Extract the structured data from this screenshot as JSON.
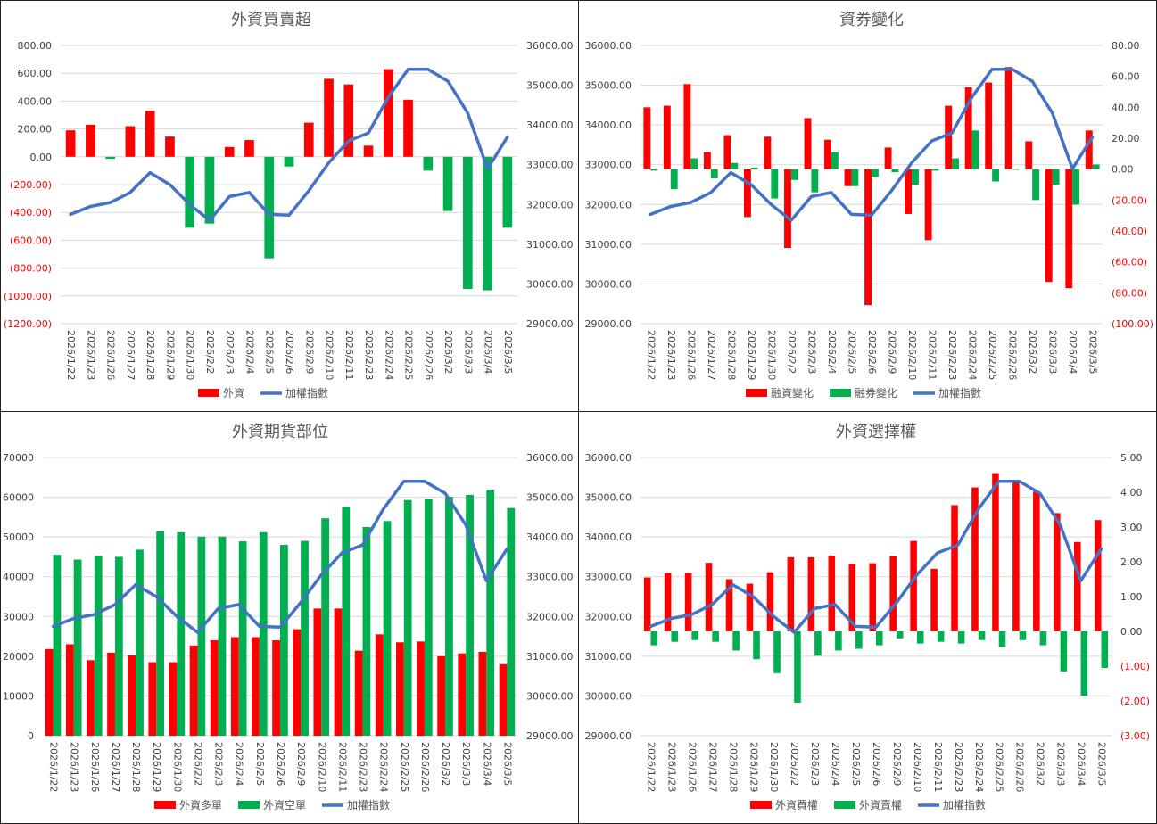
{
  "colors": {
    "red": "#ff0000",
    "green": "#00b050",
    "blue": "#4472c4",
    "grid": "#d9d9d9"
  },
  "chart_data": [
    {
      "type": "bar",
      "title": "外資買賣超",
      "categories": [
        "2026/1/22",
        "2026/1/23",
        "2026/1/26",
        "2026/1/27",
        "2026/1/28",
        "2026/1/29",
        "2026/1/30",
        "2026/2/2",
        "2026/2/3",
        "2026/2/4",
        "2026/2/5",
        "2026/2/6",
        "2026/2/9",
        "2026/2/10",
        "2026/2/11",
        "2026/2/23",
        "2026/2/24",
        "2026/2/25",
        "2026/2/26",
        "2026/3/2",
        "2026/3/3",
        "2026/3/4",
        "2026/3/5"
      ],
      "left_axis": {
        "min": -1200,
        "max": 800,
        "step": 200,
        "labels": [
          "(1200.00)",
          "(1000.00)",
          "(800.00)",
          "(600.00)",
          "(400.00)",
          "(200.00)",
          "0.00",
          "200.00",
          "400.00",
          "600.00",
          "800.00"
        ]
      },
      "right_axis": {
        "min": 29000,
        "max": 36000,
        "step": 1000,
        "labels": [
          "29000.00",
          "30000.00",
          "31000.00",
          "32000.00",
          "33000.00",
          "34000.00",
          "35000.00",
          "36000.00"
        ]
      },
      "series": [
        {
          "name": "外資",
          "kind": "signed-bar",
          "axis": "left",
          "values": [
            190,
            230,
            -15,
            220,
            330,
            145,
            -510,
            -480,
            70,
            120,
            -730,
            -70,
            245,
            560,
            520,
            80,
            630,
            410,
            -100,
            -390,
            -950,
            -960,
            -510
          ]
        },
        {
          "name": "加權指數",
          "kind": "line",
          "axis": "right",
          "values": [
            31750,
            31950,
            32050,
            32300,
            32800,
            32500,
            32000,
            31600,
            32200,
            32300,
            31750,
            31730,
            32350,
            33050,
            33600,
            33800,
            34700,
            35400,
            35400,
            35100,
            34300,
            32900,
            33700
          ]
        }
      ],
      "legend": [
        {
          "label": "外資",
          "kind": "bar",
          "color": "#ff0000"
        },
        {
          "label": "加權指數",
          "kind": "line",
          "color": "#4472c4"
        }
      ]
    },
    {
      "type": "bar",
      "title": "資券變化",
      "categories": [
        "2026/1/22",
        "2026/1/23",
        "2026/1/26",
        "2026/1/27",
        "2026/1/28",
        "2026/1/29",
        "2026/1/30",
        "2026/2/2",
        "2026/2/3",
        "2026/2/4",
        "2026/2/5",
        "2026/2/6",
        "2026/2/9",
        "2026/2/10",
        "2026/2/11",
        "2026/2/23",
        "2026/2/24",
        "2026/2/25",
        "2026/2/26",
        "2026/3/2",
        "2026/3/3",
        "2026/3/4",
        "2026/3/5"
      ],
      "left_axis": {
        "min": 29000,
        "max": 36000,
        "step": 1000,
        "labels": [
          "29000.00",
          "30000.00",
          "31000.00",
          "32000.00",
          "33000.00",
          "34000.00",
          "35000.00",
          "36000.00"
        ]
      },
      "right_axis": {
        "min": -100,
        "max": 80,
        "step": 20,
        "labels": [
          "(100.00)",
          "(80.00)",
          "(60.00)",
          "(40.00)",
          "(20.00)",
          "0.00",
          "20.00",
          "40.00",
          "60.00",
          "80.00"
        ]
      },
      "series": [
        {
          "name": "融資變化",
          "kind": "grouped-bar",
          "axis": "right",
          "values": [
            40,
            41,
            55,
            11,
            22,
            -31,
            21,
            -51,
            33,
            19,
            -11,
            -88,
            14,
            -29,
            -46,
            41,
            53,
            56,
            66,
            18,
            -73,
            -77,
            25
          ]
        },
        {
          "name": "融券變化",
          "kind": "grouped-bar",
          "axis": "right",
          "values": [
            -1,
            -13,
            7,
            -6,
            4,
            1,
            -19,
            -7,
            -15,
            11,
            -11,
            -5,
            -2,
            -10,
            -1,
            7,
            25,
            -8,
            0,
            -20,
            -10,
            -23,
            3
          ]
        },
        {
          "name": "加權指數",
          "kind": "line",
          "axis": "left",
          "values": [
            31750,
            31950,
            32050,
            32300,
            32800,
            32500,
            32000,
            31600,
            32200,
            32300,
            31750,
            31730,
            32350,
            33050,
            33600,
            33800,
            34700,
            35400,
            35400,
            35100,
            34300,
            32900,
            33700
          ]
        }
      ],
      "legend": [
        {
          "label": "融資變化",
          "kind": "bar",
          "color": "#ff0000"
        },
        {
          "label": "融券變化",
          "kind": "bar",
          "color": "#00b050"
        },
        {
          "label": "加權指數",
          "kind": "line",
          "color": "#4472c4"
        }
      ]
    },
    {
      "type": "bar",
      "title": "外資期貨部位",
      "categories": [
        "2026/1/22",
        "2026/1/23",
        "2026/1/26",
        "2026/1/27",
        "2026/1/28",
        "2026/1/29",
        "2026/1/30",
        "2026/2/2",
        "2026/2/3",
        "2026/2/4",
        "2026/2/5",
        "2026/2/6",
        "2026/2/9",
        "2026/2/10",
        "2026/2/11",
        "2026/2/23",
        "2026/2/24",
        "2026/2/25",
        "2026/2/26",
        "2026/3/2",
        "2026/3/3",
        "2026/3/4",
        "2026/3/5"
      ],
      "left_axis": {
        "min": 0,
        "max": 70000,
        "step": 10000,
        "labels": [
          "0",
          "10000",
          "20000",
          "30000",
          "40000",
          "50000",
          "60000",
          "70000"
        ]
      },
      "right_axis": {
        "min": 29000,
        "max": 36000,
        "step": 1000,
        "labels": [
          "29000.00",
          "30000.00",
          "31000.00",
          "32000.00",
          "33000.00",
          "34000.00",
          "35000.00",
          "36000.00"
        ]
      },
      "series": [
        {
          "name": "外資多單",
          "kind": "grouped-bar",
          "axis": "left",
          "values": [
            21800,
            23000,
            19000,
            20900,
            20200,
            18500,
            18500,
            22700,
            24000,
            24800,
            24800,
            24000,
            26800,
            32000,
            32000,
            21400,
            25500,
            23500,
            23700,
            20000,
            20700,
            21100,
            18000
          ]
        },
        {
          "name": "外資空單",
          "kind": "grouped-bar",
          "axis": "left",
          "values": [
            45500,
            44300,
            45200,
            45000,
            46800,
            51400,
            51200,
            50100,
            50100,
            48900,
            51200,
            48000,
            49000,
            54700,
            57600,
            52500,
            54000,
            59300,
            59500,
            60100,
            60600,
            61900,
            57300
          ]
        },
        {
          "name": "加權指數",
          "kind": "line",
          "axis": "right",
          "values": [
            31750,
            31950,
            32050,
            32300,
            32800,
            32500,
            32000,
            31600,
            32200,
            32300,
            31750,
            31730,
            32350,
            33050,
            33600,
            33800,
            34700,
            35400,
            35400,
            35100,
            34300,
            32900,
            33700
          ]
        }
      ],
      "legend": [
        {
          "label": "外資多單",
          "kind": "bar",
          "color": "#ff0000"
        },
        {
          "label": "外資空單",
          "kind": "bar",
          "color": "#00b050"
        },
        {
          "label": "加權指數",
          "kind": "line",
          "color": "#4472c4"
        }
      ]
    },
    {
      "type": "bar",
      "title": "外資選擇權",
      "categories": [
        "2026/1/22",
        "2026/1/23",
        "2026/1/26",
        "2026/1/27",
        "2026/1/28",
        "2026/1/29",
        "2026/1/30",
        "2026/2/2",
        "2026/2/3",
        "2026/2/4",
        "2026/2/5",
        "2026/2/6",
        "2026/2/9",
        "2026/2/10",
        "2026/2/11",
        "2026/2/23",
        "2026/2/24",
        "2026/2/25",
        "2026/2/26",
        "2026/3/2",
        "2026/3/3",
        "2026/3/4",
        "2026/3/5"
      ],
      "left_axis": {
        "min": 29000,
        "max": 36000,
        "step": 1000,
        "labels": [
          "29000.00",
          "30000.00",
          "31000.00",
          "32000.00",
          "33000.00",
          "34000.00",
          "35000.00",
          "36000.00"
        ]
      },
      "right_axis": {
        "min": -3,
        "max": 5,
        "step": 1,
        "labels": [
          "(3.00)",
          "(2.00)",
          "(1.00)",
          "0.00",
          "1.00",
          "2.00",
          "3.00",
          "4.00",
          "5.00"
        ]
      },
      "series": [
        {
          "name": "外資買權",
          "kind": "grouped-bar",
          "axis": "right",
          "values": [
            1.55,
            1.68,
            1.68,
            1.97,
            1.5,
            1.37,
            1.7,
            2.13,
            2.13,
            2.18,
            1.94,
            1.96,
            2.16,
            2.6,
            1.8,
            3.63,
            4.14,
            4.55,
            4.36,
            4.02,
            3.4,
            2.57,
            3.2
          ]
        },
        {
          "name": "外資賣權",
          "kind": "grouped-bar",
          "axis": "right",
          "values": [
            -0.4,
            -0.3,
            -0.25,
            -0.3,
            -0.55,
            -0.8,
            -1.2,
            -2.05,
            -0.7,
            -0.55,
            -0.5,
            -0.4,
            -0.2,
            -0.35,
            -0.3,
            -0.35,
            -0.25,
            -0.45,
            -0.25,
            -0.4,
            -1.15,
            -1.85,
            -1.05
          ]
        },
        {
          "name": "加權指數",
          "kind": "line",
          "axis": "left",
          "values": [
            31750,
            31950,
            32050,
            32300,
            32800,
            32500,
            32000,
            31600,
            32200,
            32300,
            31750,
            31730,
            32350,
            33050,
            33600,
            33800,
            34700,
            35400,
            35400,
            35100,
            34300,
            32900,
            33700
          ]
        }
      ],
      "legend": [
        {
          "label": "外資買權",
          "kind": "bar",
          "color": "#ff0000"
        },
        {
          "label": "外資賣權",
          "kind": "bar",
          "color": "#00b050"
        },
        {
          "label": "加權指數",
          "kind": "line",
          "color": "#4472c4"
        }
      ]
    }
  ]
}
